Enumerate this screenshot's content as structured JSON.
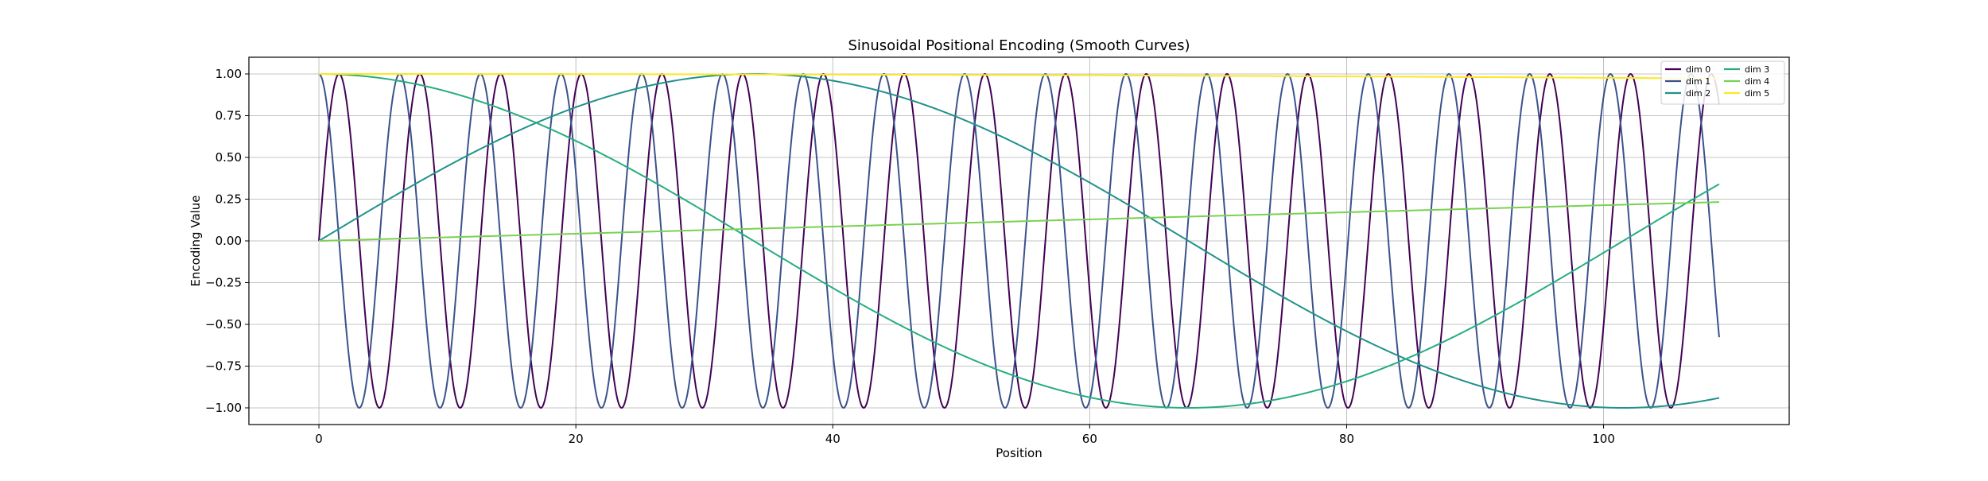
{
  "chart_data": {
    "type": "line",
    "title": "Sinusoidal Positional Encoding (Smooth Curves)",
    "xlabel": "Position",
    "ylabel": "Encoding Value",
    "xlim": [
      -5.45,
      114.45
    ],
    "ylim": [
      -1.1,
      1.1
    ],
    "xticks": [
      0,
      20,
      40,
      60,
      80,
      100
    ],
    "yticks": [
      1.0,
      0.75,
      0.5,
      0.25,
      0.0,
      -0.25,
      -0.5,
      -0.75,
      -1.0
    ],
    "ytick_labels": [
      "1.00",
      "0.75",
      "0.50",
      "0.25",
      "0.00",
      "−0.25",
      "−0.50",
      "−0.75",
      "−1.00"
    ],
    "grid": true,
    "legend": {
      "placement": "top-right",
      "columns": 2
    },
    "x_range": [
      0,
      109
    ],
    "series": [
      {
        "name": "dim 0",
        "color": "#440154",
        "formula": "sin",
        "frequency": 1.0
      },
      {
        "name": "dim 1",
        "color": "#3b528b",
        "formula": "cos",
        "frequency": 1.0
      },
      {
        "name": "dim 2",
        "color": "#21918c",
        "formula": "sin",
        "frequency": 0.04641588833612779
      },
      {
        "name": "dim 3",
        "color": "#27ad81",
        "formula": "cos",
        "frequency": 0.04641588833612779
      },
      {
        "name": "dim 4",
        "color": "#7ad151",
        "formula": "sin",
        "frequency": 0.002154434690031884
      },
      {
        "name": "dim 5",
        "color": "#fde725",
        "formula": "cos",
        "frequency": 0.002154434690031884
      }
    ]
  }
}
